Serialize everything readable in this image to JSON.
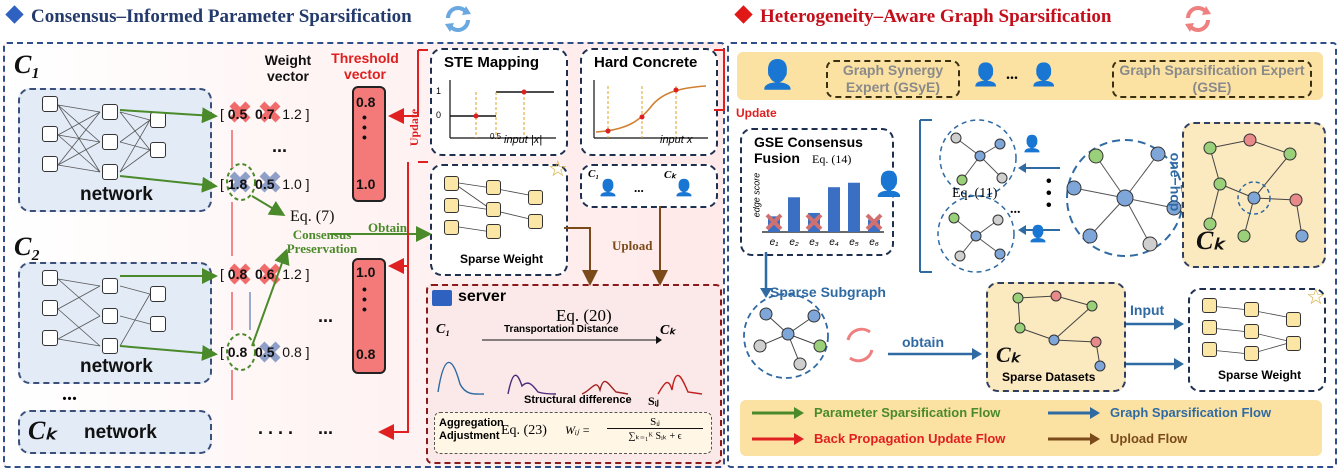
{
  "titles": {
    "left": "Consensus–Informed Parameter Sparsification",
    "right": "Heterogeneity–Aware Graph Sparsification"
  },
  "colors": {
    "left_title": "#233a6b",
    "right_title": "#c40f1b",
    "green_flow": "#4a8a2a",
    "blue_flow": "#2f6aa3",
    "red_flow": "#e02020",
    "brown_flow": "#7a4a1a"
  },
  "clients": {
    "c1": {
      "label": "C₁",
      "network": "network"
    },
    "c2": {
      "label": "C₂",
      "network": "network"
    },
    "ck": {
      "label": "Cₖ",
      "network": "network"
    },
    "dots": "..."
  },
  "vectors": {
    "weight_header": "Weight vector",
    "threshold_header": "Threshold vector",
    "row1": [
      "0.5",
      "0.7",
      "1.2"
    ],
    "row2": [
      "1.8",
      "0.5",
      "1.0"
    ],
    "row3": [
      "0.8",
      "0.6",
      "1.2"
    ],
    "row4": [
      "0.8",
      "0.5",
      "0.8"
    ],
    "thr_top_first": "0.8",
    "thr_top_last": "1.0",
    "thr_bottom_first": "1.0",
    "thr_bottom_last": "0.8",
    "dots": "...",
    "update": "Update"
  },
  "middle": {
    "eq7": "Eq. (7)",
    "consensus": "Consensus Preservation",
    "obtain": "Obtain",
    "ste_title": "STE Mapping",
    "hc_title": "Hard Concrete",
    "input_ste": "input |x|",
    "input_hc": "input x",
    "ste_one": "1",
    "ste_zero": "0",
    "ste_half": "0.5",
    "sparse_weight": "Sparse Weight",
    "upload": "Upload",
    "update": "Update",
    "c1": "C₁",
    "ck": "Cₖ",
    "ellipsis": "..."
  },
  "server": {
    "title": "server",
    "eq20": "Eq. (20)",
    "transport": "Transportation Distance",
    "structural": "Structural difference",
    "sij": "Sᵢⱼ",
    "agg": "Aggregation Adjustment",
    "eq23": "Eq. (23)",
    "formula_lhs": "Wᵢⱼ =",
    "formula_num": "Sᵢⱼ",
    "formula_den": "∑ₖ₌₁ᴷ Sᵢₖ + ϵ",
    "c1": "C₁",
    "ck": "Cₖ"
  },
  "right": {
    "gsye": "Graph Synergy Expert (GSyE)",
    "gse": "Graph Sparsification Expert (GSE)",
    "ellipsis": "...",
    "fusion_title": "GSE Consensus Fusion",
    "eq14": "Eq. (14)",
    "edge_score": "edge score",
    "edges": [
      "e₁",
      "e₂",
      "e₃",
      "e₄",
      "e₅",
      "e₆"
    ],
    "edge_values": [
      0.28,
      0.62,
      0.34,
      0.8,
      0.88,
      0.22
    ],
    "edge_removed": [
      true,
      false,
      true,
      false,
      false,
      true
    ],
    "eq11": "Eq. (11)",
    "one_hop": "one−hop",
    "ck": "Cₖ",
    "sparse_subgraph": "Sparse Subgraph",
    "obtain": "obtain",
    "input": "Input",
    "sparse_datasets": "Sparse Datasets",
    "sparse_weight": "Sparse Weight"
  },
  "legend": {
    "param_flow": "Parameter  Sparsification Flow",
    "graph_flow": "Graph  Sparsification Flow",
    "bp_flow": "Back Propagation Update Flow",
    "upload_flow": "Upload Flow"
  }
}
